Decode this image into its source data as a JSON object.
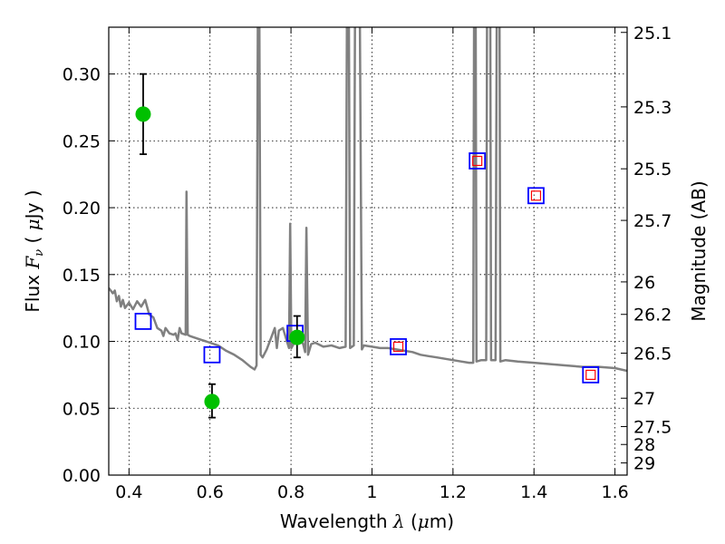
{
  "chart_data": {
    "type": "scatter",
    "xlabel_parts": [
      "Wavelength ",
      "λ",
      " (",
      "μ",
      "m)"
    ],
    "ylabel_parts": [
      "Flux ",
      "F",
      "ν",
      " ( ",
      "μ",
      "Jy )"
    ],
    "y2label": "Magnitude (AB)",
    "xlim": [
      0.35,
      1.63
    ],
    "ylim": [
      0.0,
      0.335
    ],
    "grid": true,
    "x_ticks": [
      {
        "value": 0.4,
        "label": "0.4"
      },
      {
        "value": 0.6,
        "label": "0.6"
      },
      {
        "value": 0.8,
        "label": "0.8"
      },
      {
        "value": 1.0,
        "label": "1"
      },
      {
        "value": 1.2,
        "label": "1.2"
      },
      {
        "value": 1.4,
        "label": "1.4"
      },
      {
        "value": 1.6,
        "label": "1.6"
      }
    ],
    "y_ticks": [
      {
        "value": 0.0,
        "label": "0.00"
      },
      {
        "value": 0.05,
        "label": "0.05"
      },
      {
        "value": 0.1,
        "label": "0.10"
      },
      {
        "value": 0.15,
        "label": "0.15"
      },
      {
        "value": 0.2,
        "label": "0.20"
      },
      {
        "value": 0.25,
        "label": "0.25"
      },
      {
        "value": 0.3,
        "label": "0.30"
      }
    ],
    "y2_ticks": [
      {
        "flux": 0.3311,
        "label": "25.1"
      },
      {
        "flux": 0.2754,
        "label": "25.3"
      },
      {
        "flux": 0.2291,
        "label": "25.5"
      },
      {
        "flux": 0.1905,
        "label": "25.7"
      },
      {
        "flux": 0.1445,
        "label": "26"
      },
      {
        "flux": 0.1202,
        "label": "26.2"
      },
      {
        "flux": 0.0912,
        "label": "26.5"
      },
      {
        "flux": 0.0575,
        "label": "27"
      },
      {
        "flux": 0.0363,
        "label": "27.5"
      },
      {
        "flux": 0.0229,
        "label": "28"
      },
      {
        "flux": 0.0091,
        "label": "29"
      }
    ],
    "series": [
      {
        "style": "line",
        "color": "#808080",
        "points": [
          [
            0.35,
            0.14
          ],
          [
            0.36,
            0.136
          ],
          [
            0.365,
            0.138
          ],
          [
            0.37,
            0.13
          ],
          [
            0.375,
            0.134
          ],
          [
            0.38,
            0.126
          ],
          [
            0.385,
            0.131
          ],
          [
            0.39,
            0.125
          ],
          [
            0.4,
            0.129
          ],
          [
            0.41,
            0.124
          ],
          [
            0.42,
            0.13
          ],
          [
            0.43,
            0.126
          ],
          [
            0.44,
            0.131
          ],
          [
            0.45,
            0.12
          ],
          [
            0.46,
            0.118
          ],
          [
            0.47,
            0.11
          ],
          [
            0.48,
            0.108
          ],
          [
            0.485,
            0.104
          ],
          [
            0.49,
            0.11
          ],
          [
            0.5,
            0.106
          ],
          [
            0.51,
            0.105
          ],
          [
            0.515,
            0.106
          ],
          [
            0.52,
            0.101
          ],
          [
            0.525,
            0.11
          ],
          [
            0.53,
            0.106
          ],
          [
            0.54,
            0.105
          ],
          [
            0.542,
            0.212
          ],
          [
            0.545,
            0.105
          ],
          [
            0.55,
            0.104
          ],
          [
            0.56,
            0.103
          ],
          [
            0.57,
            0.102
          ],
          [
            0.58,
            0.101
          ],
          [
            0.59,
            0.1
          ],
          [
            0.6,
            0.099
          ],
          [
            0.62,
            0.097
          ],
          [
            0.64,
            0.093
          ],
          [
            0.66,
            0.09
          ],
          [
            0.68,
            0.086
          ],
          [
            0.7,
            0.081
          ],
          [
            0.71,
            0.079
          ],
          [
            0.715,
            0.082
          ],
          [
            0.718,
            0.34
          ],
          [
            0.722,
            0.34
          ],
          [
            0.725,
            0.09
          ],
          [
            0.73,
            0.088
          ],
          [
            0.74,
            0.094
          ],
          [
            0.75,
            0.102
          ],
          [
            0.76,
            0.11
          ],
          [
            0.765,
            0.095
          ],
          [
            0.77,
            0.108
          ],
          [
            0.78,
            0.11
          ],
          [
            0.79,
            0.1
          ],
          [
            0.795,
            0.095
          ],
          [
            0.798,
            0.188
          ],
          [
            0.801,
            0.095
          ],
          [
            0.81,
            0.1
          ],
          [
            0.82,
            0.102
          ],
          [
            0.83,
            0.098
          ],
          [
            0.835,
            0.092
          ],
          [
            0.838,
            0.185
          ],
          [
            0.842,
            0.09
          ],
          [
            0.85,
            0.098
          ],
          [
            0.86,
            0.099
          ],
          [
            0.88,
            0.096
          ],
          [
            0.9,
            0.097
          ],
          [
            0.92,
            0.095
          ],
          [
            0.935,
            0.096
          ],
          [
            0.938,
            0.34
          ],
          [
            0.943,
            0.34
          ],
          [
            0.946,
            0.095
          ],
          [
            0.955,
            0.097
          ],
          [
            0.958,
            0.34
          ],
          [
            0.962,
            0.34
          ],
          [
            0.965,
            0.34
          ],
          [
            0.97,
            0.34
          ],
          [
            0.975,
            0.094
          ],
          [
            0.98,
            0.097
          ],
          [
            1.0,
            0.096
          ],
          [
            1.02,
            0.095
          ],
          [
            1.04,
            0.095
          ],
          [
            1.06,
            0.094
          ],
          [
            1.08,
            0.093
          ],
          [
            1.1,
            0.092
          ],
          [
            1.12,
            0.09
          ],
          [
            1.14,
            0.089
          ],
          [
            1.16,
            0.088
          ],
          [
            1.18,
            0.087
          ],
          [
            1.2,
            0.086
          ],
          [
            1.22,
            0.085
          ],
          [
            1.24,
            0.084
          ],
          [
            1.25,
            0.084
          ],
          [
            1.252,
            0.34
          ],
          [
            1.256,
            0.34
          ],
          [
            1.258,
            0.085
          ],
          [
            1.27,
            0.086
          ],
          [
            1.282,
            0.086
          ],
          [
            1.284,
            0.34
          ],
          [
            1.292,
            0.34
          ],
          [
            1.294,
            0.086
          ],
          [
            1.305,
            0.086
          ],
          [
            1.308,
            0.34
          ],
          [
            1.315,
            0.34
          ],
          [
            1.317,
            0.085
          ],
          [
            1.33,
            0.086
          ],
          [
            1.36,
            0.085
          ],
          [
            1.4,
            0.084
          ],
          [
            1.44,
            0.083
          ],
          [
            1.48,
            0.082
          ],
          [
            1.52,
            0.081
          ],
          [
            1.56,
            0.081
          ],
          [
            1.6,
            0.08
          ],
          [
            1.63,
            0.078
          ]
        ]
      },
      {
        "style": "square",
        "color": "#0000ff",
        "points": [
          [
            0.435,
            0.115
          ],
          [
            0.605,
            0.09
          ],
          [
            0.81,
            0.106
          ],
          [
            1.065,
            0.096
          ],
          [
            1.26,
            0.235
          ],
          [
            1.405,
            0.209
          ],
          [
            1.54,
            0.075
          ]
        ]
      },
      {
        "style": "small-square",
        "color": "#ff0000",
        "points": [
          [
            1.065,
            0.096
          ],
          [
            1.26,
            0.235
          ],
          [
            1.405,
            0.209
          ],
          [
            1.54,
            0.075
          ]
        ]
      },
      {
        "style": "errorbar-circle",
        "color": "#00c000",
        "points": [
          {
            "x": 0.435,
            "y": 0.27,
            "lo": 0.24,
            "hi": 0.3
          },
          {
            "x": 0.605,
            "y": 0.055,
            "lo": 0.043,
            "hi": 0.068
          },
          {
            "x": 0.815,
            "y": 0.103,
            "lo": 0.088,
            "hi": 0.119
          }
        ]
      }
    ]
  }
}
